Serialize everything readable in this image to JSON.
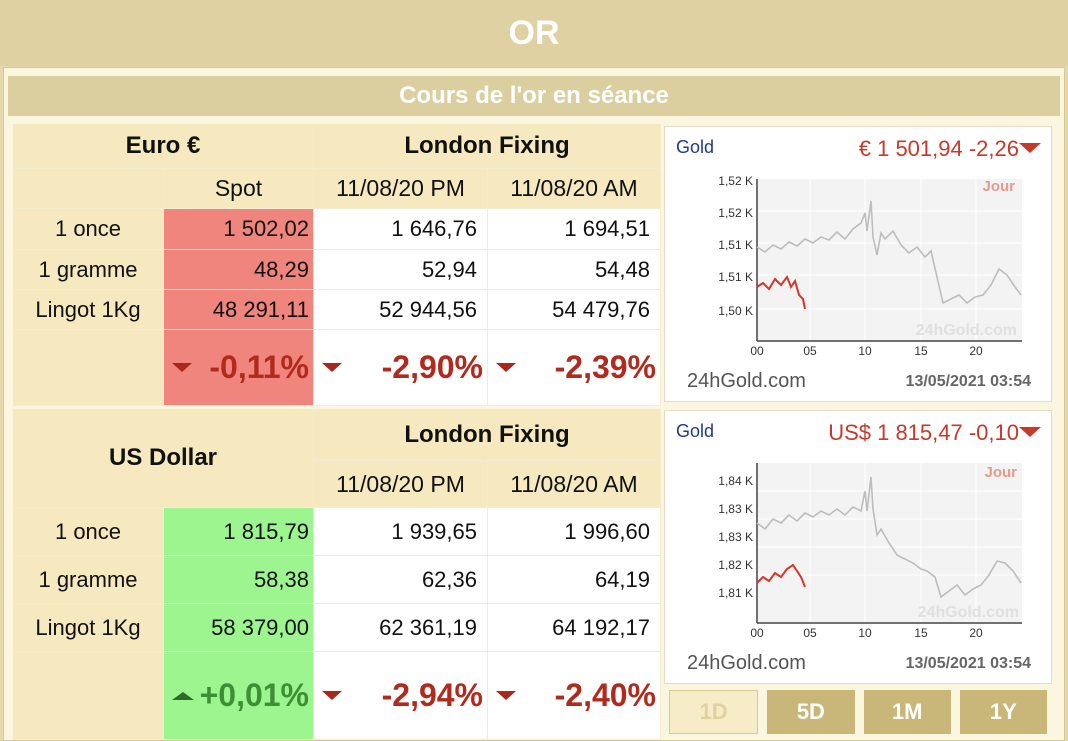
{
  "page": {
    "title": "OR",
    "subtitle": "Cours de l'or en séance"
  },
  "eur_table": {
    "currency_header": "Euro €",
    "fixing_header": "London Fixing",
    "col_spot": "Spot",
    "col_pm": "11/08/20 PM",
    "col_am": "11/08/20 AM",
    "rows": [
      {
        "label": "1 once",
        "spot": "1 502,02",
        "pm": "1 646,76",
        "am": "1 694,51"
      },
      {
        "label": "1 gramme",
        "spot": "48,29",
        "pm": "52,94",
        "am": "54,48"
      },
      {
        "label": "Lingot 1Kg",
        "spot": "48 291,11",
        "pm": "52 944,56",
        "am": "54 479,76"
      }
    ],
    "changes": {
      "spot": "-0,11%",
      "pm": "-2,90%",
      "am": "-2,39%"
    }
  },
  "usd_table": {
    "currency_header": "US Dollar",
    "fixing_header": "London Fixing",
    "col_pm": "11/08/20 PM",
    "col_am": "11/08/20 AM",
    "rows": [
      {
        "label": "1 once",
        "spot": "1 815,79",
        "pm": "1 939,65",
        "am": "1 996,60"
      },
      {
        "label": "1 gramme",
        "spot": "58,38",
        "pm": "62,36",
        "am": "64,19"
      },
      {
        "label": "Lingot 1Kg",
        "spot": "58 379,00",
        "pm": "62 361,19",
        "am": "64 192,17"
      }
    ],
    "changes": {
      "spot": "+0,01%",
      "pm": "-2,94%",
      "am": "-2,40%"
    }
  },
  "charts": {
    "eur": {
      "tag": "Gold",
      "price": "€ 1 501,94 -2,26",
      "period_label": "Jour",
      "watermark": "24hGold.com",
      "site": "24hGold.com",
      "stamp": "13/05/2021 03:54",
      "y_ticks": [
        "1,52 K",
        "1,52 K",
        "1,51 K",
        "1,51 K",
        "1,50 K"
      ],
      "x_ticks": [
        "00",
        "05",
        "10",
        "15",
        "20"
      ]
    },
    "usd": {
      "tag": "Gold",
      "price": "US$ 1 815,47 -0,10",
      "period_label": "Jour",
      "watermark": "24hGold.com",
      "site": "24hGold.com",
      "stamp": "13/05/2021 03:54",
      "y_ticks": [
        "1,84 K",
        "1,83 K",
        "1,83 K",
        "1,82 K",
        "1,81 K"
      ],
      "x_ticks": [
        "00",
        "05",
        "10",
        "15",
        "20"
      ]
    }
  },
  "range_buttons": [
    "1D",
    "5D",
    "1M",
    "1Y"
  ],
  "colors": {
    "header": "#dfd1a1",
    "spot_eur": "#ef857c",
    "spot_usd": "#9df590",
    "negative": "#b02b1e",
    "positive": "#3e8f33"
  }
}
